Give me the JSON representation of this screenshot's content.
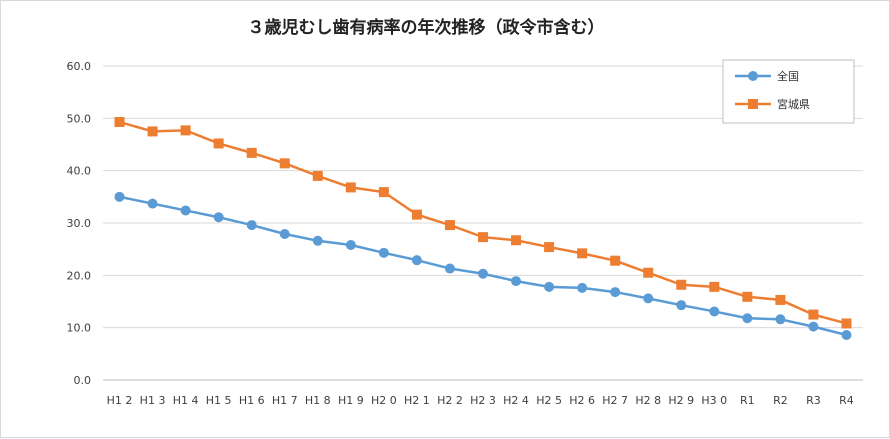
{
  "chart_data": {
    "type": "line",
    "title": "３歳児むし歯有病率の年次推移（政令市含む）",
    "xlabel": "",
    "ylabel": "",
    "ylim": [
      0,
      60
    ],
    "y_ticks": [
      "0.0",
      "10.0",
      "20.0",
      "30.0",
      "40.0",
      "50.0",
      "60.0"
    ],
    "grid": true,
    "legend_position": "top-right",
    "categories": [
      "H１２",
      "H１３",
      "H１４",
      "H１５",
      "H１６",
      "H１７",
      "H１８",
      "H１９",
      "H２０",
      "H２１",
      "H２２",
      "H２３",
      "H２４",
      "H２５",
      "H２６",
      "H２７",
      "H２８",
      "H２９",
      "H３０",
      "R1",
      "R2",
      "R3",
      "R4"
    ],
    "category_labels": [
      "H1 2",
      "H1 3",
      "H1 4",
      "H1 5",
      "H1 6",
      "H1 7",
      "H1 8",
      "H1 9",
      "H2 0",
      "H2 1",
      "H2 2",
      "H2 3",
      "H2 4",
      "H2 5",
      "H2 6",
      "H2 7",
      "H2 8",
      "H2 9",
      "H3 0",
      "R1",
      "R2",
      "R3",
      "R4"
    ],
    "series": [
      {
        "name": "全国",
        "color": "#5b9bd5",
        "marker": "circle",
        "values": [
          35.0,
          33.7,
          32.4,
          31.1,
          29.6,
          27.9,
          26.6,
          25.8,
          24.3,
          22.9,
          21.3,
          20.3,
          18.9,
          17.8,
          17.6,
          16.8,
          15.6,
          14.3,
          13.1,
          11.8,
          11.6,
          10.2,
          8.6
        ]
      },
      {
        "name": "宮城県",
        "color": "#ed7d31",
        "marker": "square",
        "values": [
          49.3,
          47.5,
          47.7,
          45.2,
          43.4,
          41.4,
          39.0,
          36.8,
          35.9,
          31.6,
          29.6,
          27.3,
          26.7,
          25.4,
          24.2,
          22.8,
          20.5,
          18.2,
          17.8,
          15.9,
          15.3,
          12.5,
          10.8
        ]
      }
    ]
  }
}
